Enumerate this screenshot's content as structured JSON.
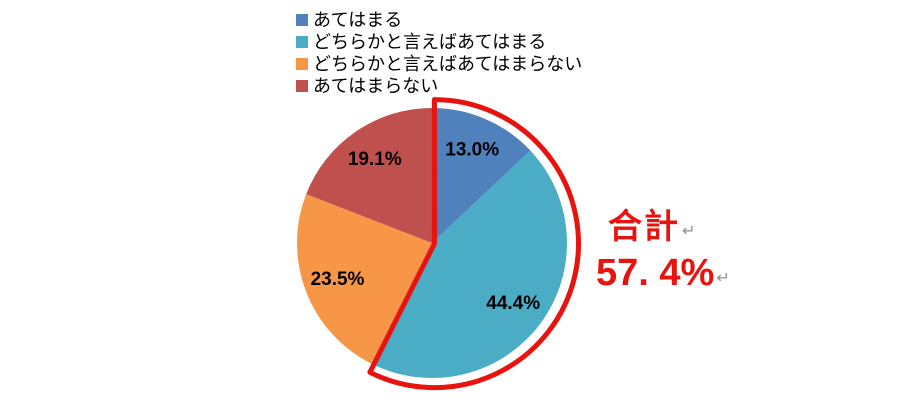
{
  "background": "#FFFFFF",
  "chart_data": {
    "type": "pie",
    "title": "",
    "unit": "%",
    "start_angle_deg": 0,
    "direction": "clockwise",
    "legend_position": "top",
    "grid": false,
    "slices": [
      {
        "label": "あてはまる",
        "value": 13.0,
        "display": "13.0%",
        "color": "#4F81BD"
      },
      {
        "label": "どちらかと言えばあてはまる",
        "value": 44.4,
        "display": "44.4%",
        "color": "#4BACC6"
      },
      {
        "label": "どちらかと言えばあてはまらない",
        "value": 23.5,
        "display": "23.5%",
        "color": "#F79646"
      },
      {
        "label": "あてはまらない",
        "value": 19.1,
        "display": "19.1%",
        "color": "#C0504D"
      }
    ],
    "slice_label_color": "#000000",
    "highlight": {
      "label": "合計",
      "value_display": "57. 4%",
      "total_percent": 57.4,
      "covers_slices": [
        0,
        1
      ],
      "color": "#E8120E",
      "paragraph_mark": "↵"
    }
  }
}
